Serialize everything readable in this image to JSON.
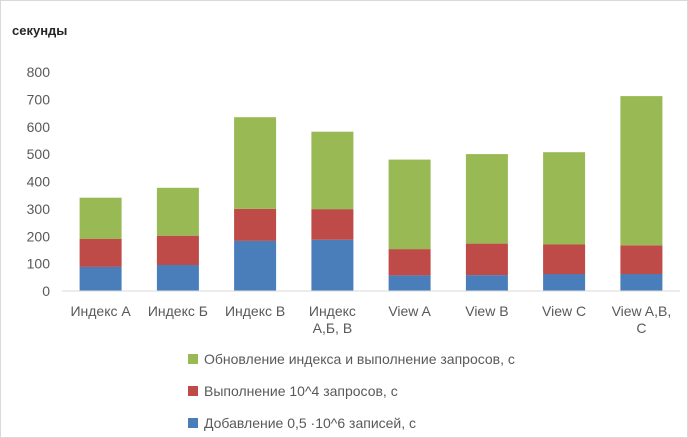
{
  "chart_data": {
    "type": "bar",
    "stacked": true,
    "y_unit_label": "секунды",
    "categories": [
      [
        "Индекс А"
      ],
      [
        "Индекс Б"
      ],
      [
        "Индекс В"
      ],
      [
        "Индекс",
        "А,Б, В"
      ],
      [
        "View A"
      ],
      [
        "View B"
      ],
      [
        "View C"
      ],
      [
        "View A,B,",
        "C"
      ]
    ],
    "series": [
      {
        "name": "Добавление 0,5 ·10^6 записей, с",
        "color": "#4a7ebb",
        "values": [
          88,
          95,
          183,
          187,
          57,
          58,
          62,
          62
        ]
      },
      {
        "name": "Выполнение 10^4 запросов, с",
        "color": "#be4b48",
        "values": [
          103,
          107,
          117,
          112,
          96,
          115,
          108,
          105
        ]
      },
      {
        "name": "Обновление индекса и выполнение запросов, с",
        "color": "#98b954",
        "values": [
          150,
          175,
          335,
          283,
          327,
          327,
          337,
          545
        ]
      }
    ],
    "ylim": [
      0,
      800
    ],
    "yticks": [
      0,
      100,
      200,
      300,
      400,
      500,
      600,
      700,
      800
    ],
    "grid": false,
    "legend_position": "bottom",
    "legend_order": [
      2,
      1,
      0
    ]
  }
}
